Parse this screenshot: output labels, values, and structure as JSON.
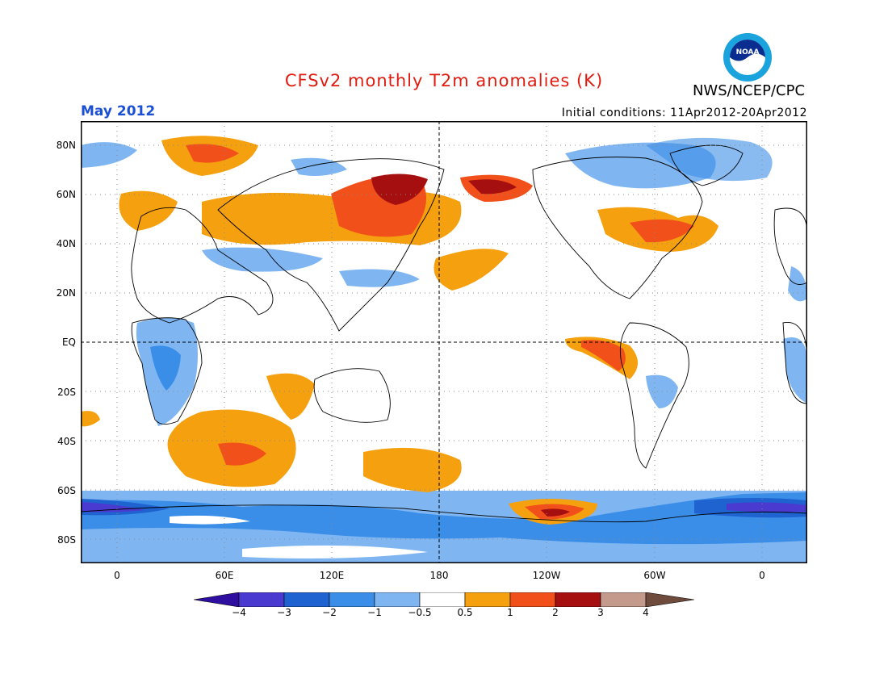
{
  "header": {
    "title": "CFSv2 monthly T2m anomalies (K)",
    "title_color": "#e11b0f",
    "agency": "NWS/NCEP/CPC",
    "month": "May 2012",
    "month_color": "#1b4fd6",
    "initial_conditions": "Initial conditions: 11Apr2012-20Apr2012"
  },
  "logo": {
    "icon": "noaa-logo",
    "text": "NOAA"
  },
  "map": {
    "projection": "cylindrical equidistant, 0-360 longitude",
    "lat_labels": [
      "80N",
      "60N",
      "40N",
      "20N",
      "EQ",
      "20S",
      "40S",
      "60S",
      "80S"
    ],
    "lon_labels": [
      "0",
      "60E",
      "120E",
      "180",
      "120W",
      "60W",
      "0"
    ],
    "grid": "dotted, 20 degree spacing; dashed equator and dateline"
  },
  "colorbar": {
    "labels": [
      "−4",
      "−3",
      "−2",
      "−1",
      "−0.5",
      "0.5",
      "1",
      "2",
      "3",
      "4"
    ],
    "colors": [
      "#2f0fa0",
      "#4a3ad0",
      "#1f63d0",
      "#3b8ee8",
      "#7fb6f2",
      "#ffffff",
      "#f5a00e",
      "#f2501a",
      "#a60f10",
      "#c49a8c",
      "#6f4b3d"
    ]
  }
}
